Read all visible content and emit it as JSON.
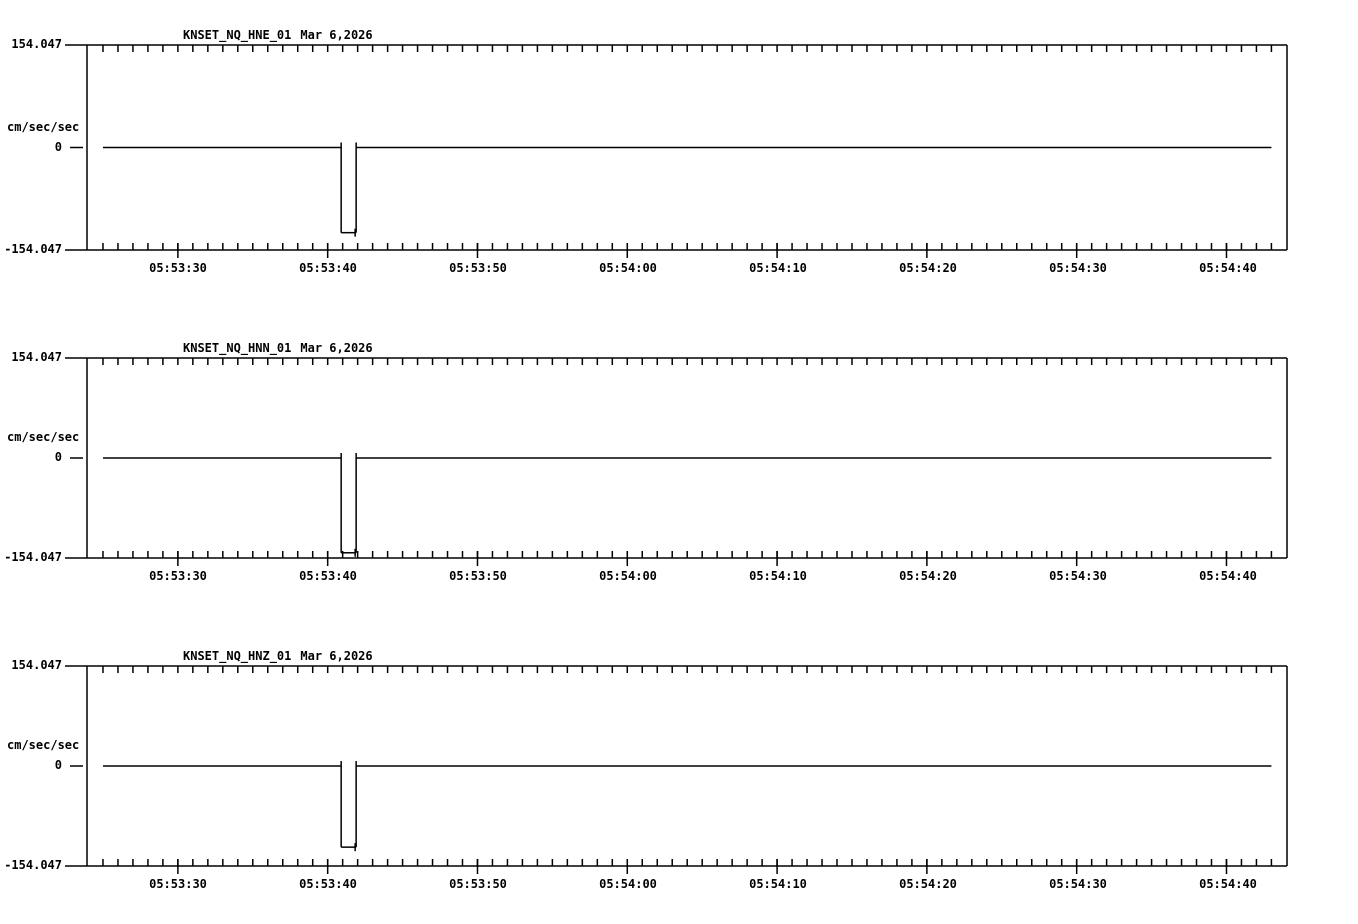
{
  "page": {
    "background_color": "#ffffff",
    "line_color": "#000000"
  },
  "axis": {
    "y_max_label": "154.047",
    "y_zero_label": "0",
    "y_min_label": "-154.047",
    "y_units_label": "cm/sec/sec",
    "x_tick_labels": [
      "05:53:30",
      "05:53:40",
      "05:53:50",
      "05:54:00",
      "05:54:10",
      "05:54:20",
      "05:54:30",
      "05:54:40"
    ]
  },
  "panels": [
    {
      "station": "KNSET_NQ_HNE_01",
      "date": "Mar 6,2026"
    },
    {
      "station": "KNSET_NQ_HNN_01",
      "date": "Mar 6,2026"
    },
    {
      "station": "KNSET_NQ_HNZ_01",
      "date": "Mar 6,2026"
    }
  ],
  "chart_data": {
    "type": "line",
    "title": "KNSET strong-motion acceleration traces, three components",
    "date": "Mar 6,2026",
    "ylabel": "cm/sec/sec",
    "ylim": [
      -154.047,
      154.047
    ],
    "xlim": [
      "05:53:24",
      "05:54:44"
    ],
    "x_minor_tick_sec": 1,
    "x_major_tick_sec": 10,
    "x_tick_labels": [
      "05:53:30",
      "05:53:40",
      "05:53:50",
      "05:54:00",
      "05:54:10",
      "05:54:20",
      "05:54:30",
      "05:54:40"
    ],
    "grid": false,
    "legend_position": "none",
    "series": [
      {
        "name": "KNSET_NQ_HNE_01",
        "points": [
          [
            "05:53:25",
            0
          ],
          [
            "05:53:40.9",
            0
          ],
          [
            "05:53:40.9",
            -128
          ],
          [
            "05:53:41.9",
            -128
          ],
          [
            "05:53:41.9",
            0
          ],
          [
            "05:54:43",
            0
          ]
        ]
      },
      {
        "name": "KNSET_NQ_HNN_01",
        "points": [
          [
            "05:53:25",
            0
          ],
          [
            "05:53:40.9",
            0
          ],
          [
            "05:53:40.9",
            -146
          ],
          [
            "05:53:41.9",
            -146
          ],
          [
            "05:53:41.9",
            0
          ],
          [
            "05:54:43",
            0
          ]
        ]
      },
      {
        "name": "KNSET_NQ_HNZ_01",
        "points": [
          [
            "05:53:25",
            0
          ],
          [
            "05:53:40.9",
            0
          ],
          [
            "05:53:40.9",
            -125
          ],
          [
            "05:53:41.9",
            -125
          ],
          [
            "05:53:41.9",
            0
          ],
          [
            "05:54:43",
            0
          ]
        ]
      }
    ]
  }
}
